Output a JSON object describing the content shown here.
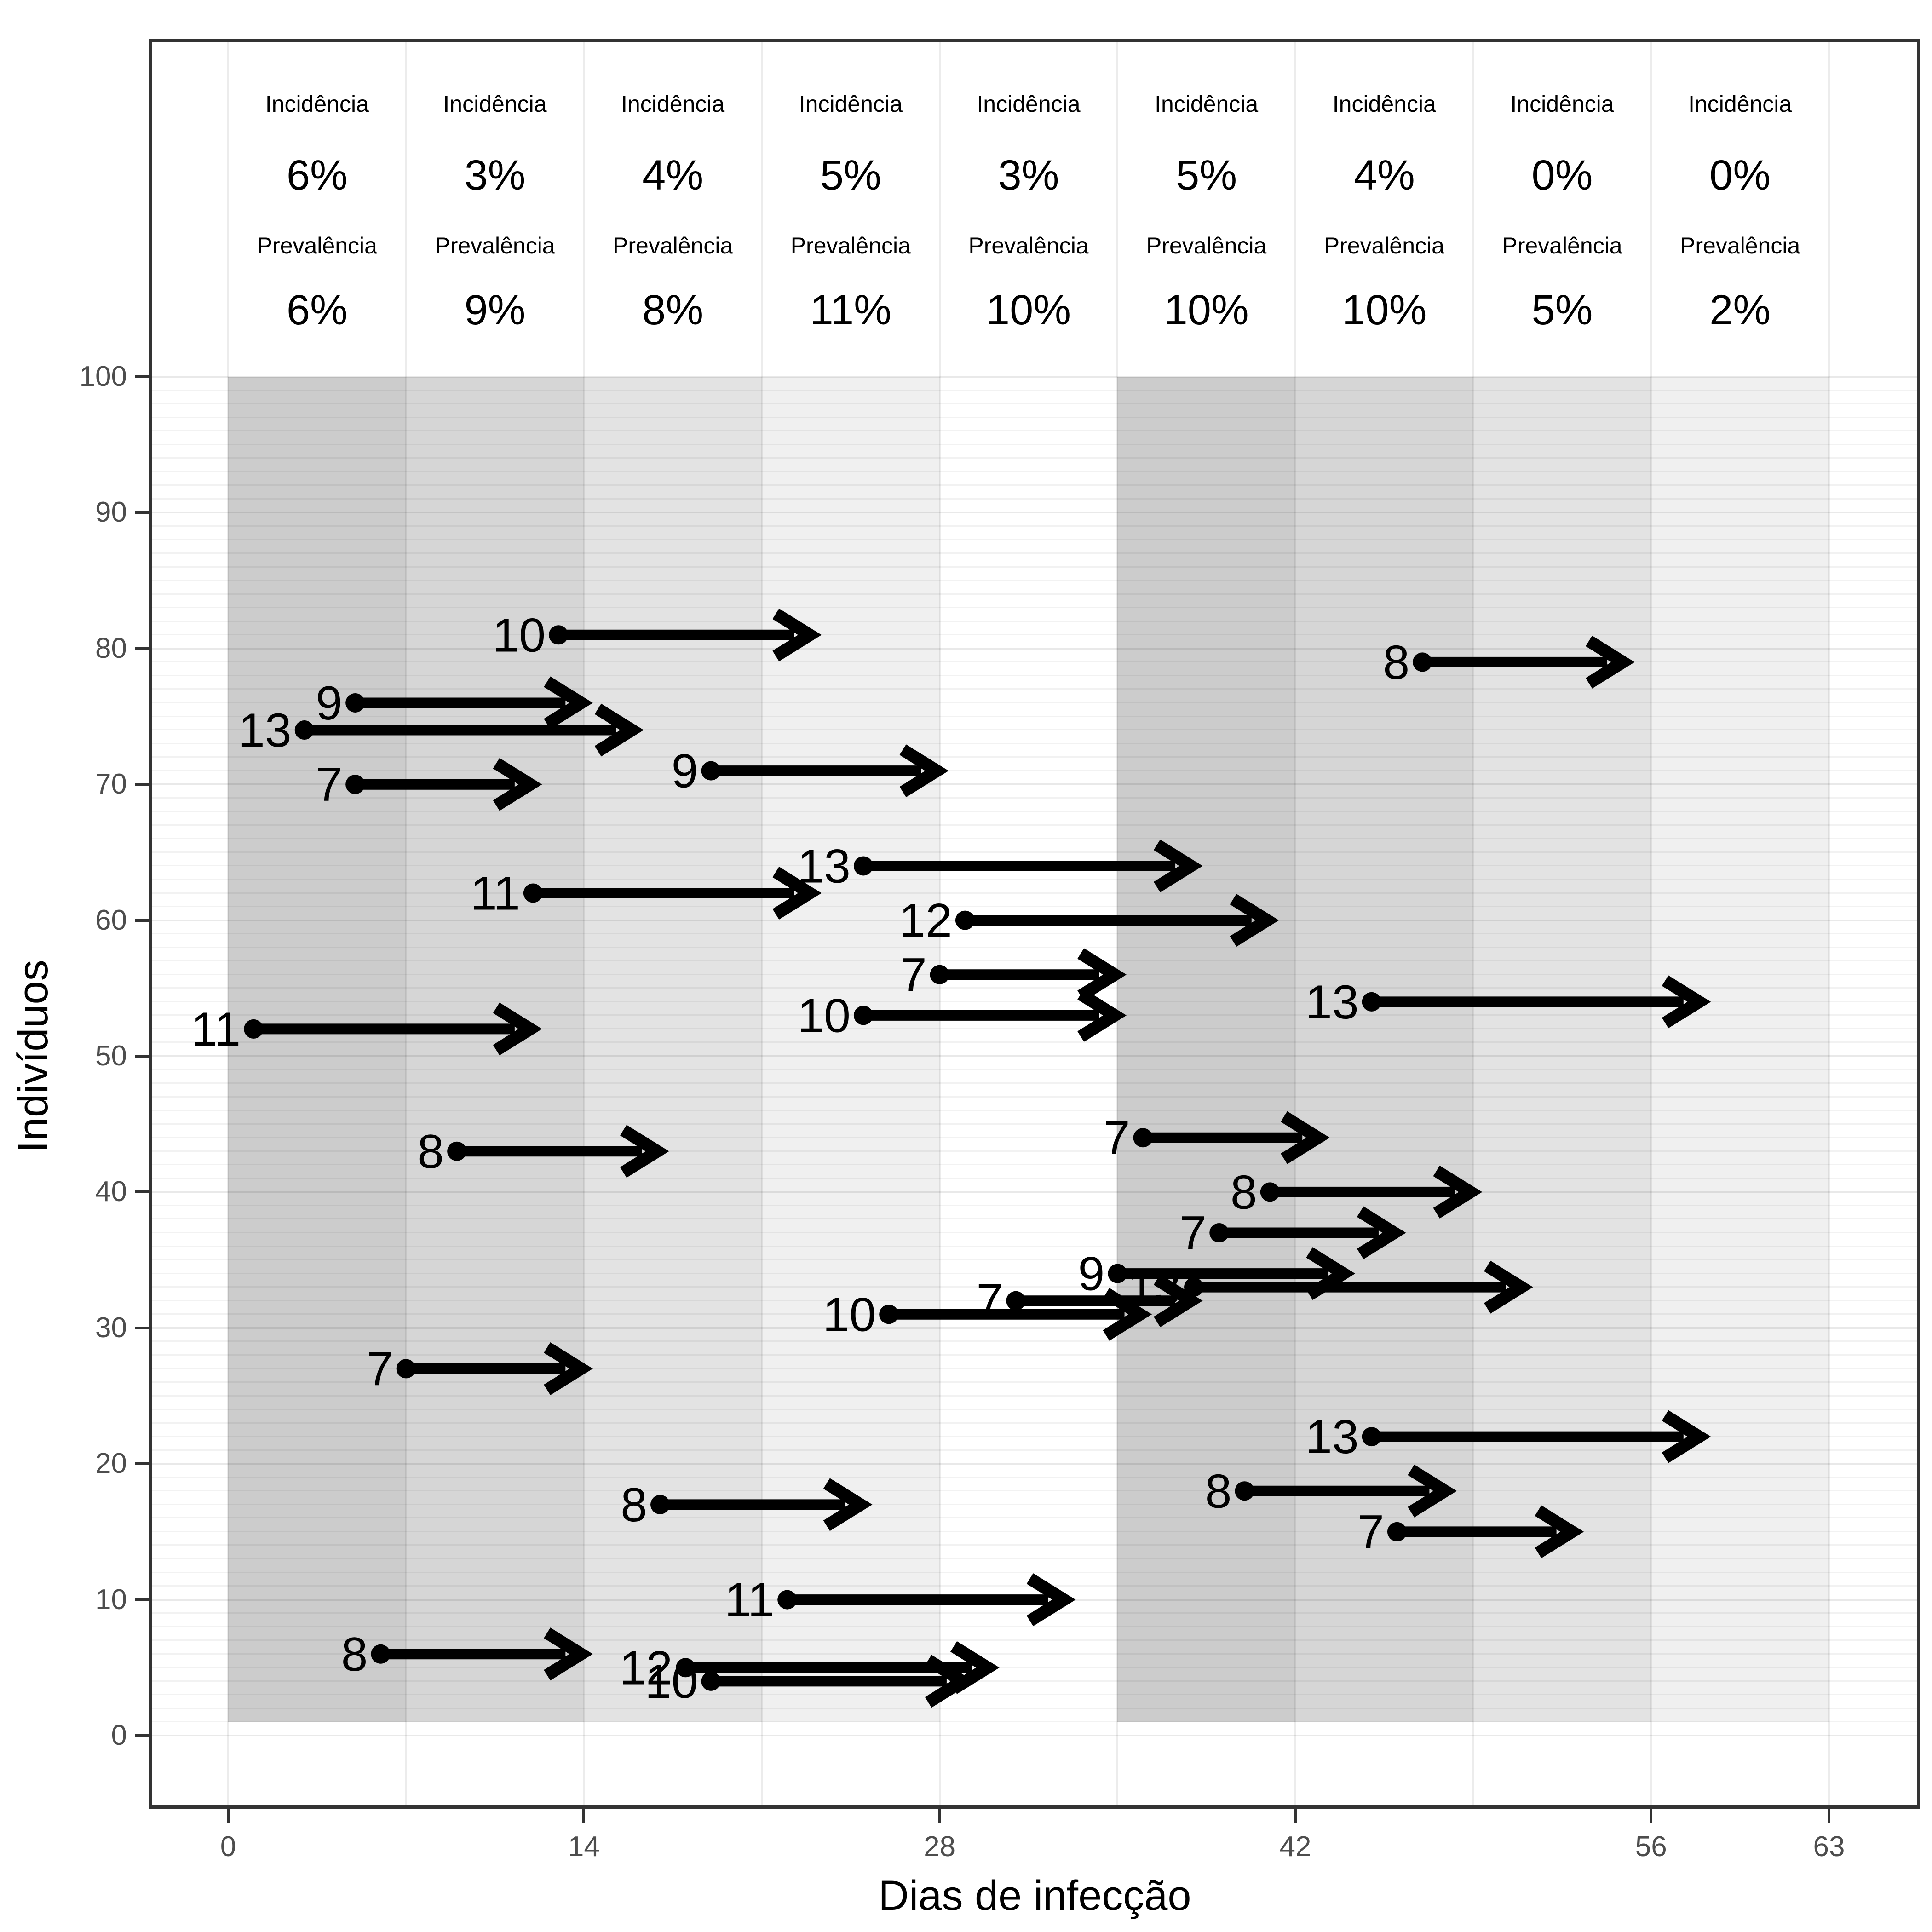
{
  "figure": {
    "x_axis": {
      "title": "Dias de infecção",
      "tick_values": [
        0,
        14,
        28,
        42,
        56,
        63
      ],
      "range": [
        0,
        63
      ]
    },
    "y_axis": {
      "title": "Indivíduos",
      "tick_values": [
        0,
        10,
        20,
        30,
        40,
        50,
        60,
        70,
        80,
        90,
        100
      ],
      "range": [
        0,
        100
      ]
    }
  },
  "chart_data": {
    "type": "arrow-timeline",
    "title": "",
    "xlabel": "Dias de infecção",
    "ylabel": "Indivíduos",
    "xlim": [
      0,
      63
    ],
    "ylim": [
      0,
      100
    ],
    "grid": "weekly vertical lines, per-individual horizontal lines",
    "incidence_word": "Incidência",
    "prevalence_word": "Prevalência",
    "weekly_stats": [
      {
        "week": 1,
        "from_day": 0,
        "to_day": 7,
        "incidence": "6%",
        "prevalence": "6%",
        "band_color": "#cccccc"
      },
      {
        "week": 2,
        "from_day": 7,
        "to_day": 14,
        "incidence": "3%",
        "prevalence": "9%",
        "band_color": "#d6d6d6"
      },
      {
        "week": 3,
        "from_day": 14,
        "to_day": 21,
        "incidence": "4%",
        "prevalence": "8%",
        "band_color": "#e3e3e3"
      },
      {
        "week": 4,
        "from_day": 21,
        "to_day": 28,
        "incidence": "5%",
        "prevalence": "11%",
        "band_color": "#f0f0f0"
      },
      {
        "week": 5,
        "from_day": 28,
        "to_day": 35,
        "incidence": "3%",
        "prevalence": "10%",
        "band_color": null
      },
      {
        "week": 6,
        "from_day": 35,
        "to_day": 42,
        "incidence": "5%",
        "prevalence": "10%",
        "band_color": "#cccccc"
      },
      {
        "week": 7,
        "from_day": 42,
        "to_day": 49,
        "incidence": "4%",
        "prevalence": "10%",
        "band_color": "#d6d6d6"
      },
      {
        "week": 8,
        "from_day": 49,
        "to_day": 56,
        "incidence": "0%",
        "prevalence": "5%",
        "band_color": "#e3e3e3"
      },
      {
        "week": 9,
        "from_day": 56,
        "to_day": 63,
        "incidence": "0%",
        "prevalence": "2%",
        "band_color": "#f0f0f0"
      }
    ],
    "arrows": [
      {
        "individual": 81,
        "start_day": 13,
        "duration_days": 10,
        "label": "10"
      },
      {
        "individual": 79,
        "start_day": 47,
        "duration_days": 8,
        "label": "8"
      },
      {
        "individual": 76,
        "start_day": 5,
        "duration_days": 9,
        "label": "9"
      },
      {
        "individual": 74,
        "start_day": 3,
        "duration_days": 13,
        "label": "13"
      },
      {
        "individual": 71,
        "start_day": 19,
        "duration_days": 9,
        "label": "9"
      },
      {
        "individual": 70,
        "start_day": 5,
        "duration_days": 7,
        "label": "7"
      },
      {
        "individual": 64,
        "start_day": 25,
        "duration_days": 13,
        "label": "13"
      },
      {
        "individual": 62,
        "start_day": 12,
        "duration_days": 11,
        "label": "11"
      },
      {
        "individual": 60,
        "start_day": 29,
        "duration_days": 12,
        "label": "12"
      },
      {
        "individual": 56,
        "start_day": 28,
        "duration_days": 7,
        "label": "7"
      },
      {
        "individual": 54,
        "start_day": 45,
        "duration_days": 13,
        "label": "13"
      },
      {
        "individual": 53,
        "start_day": 25,
        "duration_days": 10,
        "label": "10"
      },
      {
        "individual": 52,
        "start_day": 1,
        "duration_days": 11,
        "label": "11"
      },
      {
        "individual": 44,
        "start_day": 36,
        "duration_days": 7,
        "label": "7"
      },
      {
        "individual": 43,
        "start_day": 9,
        "duration_days": 8,
        "label": "8"
      },
      {
        "individual": 40,
        "start_day": 41,
        "duration_days": 8,
        "label": "8"
      },
      {
        "individual": 37,
        "start_day": 39,
        "duration_days": 7,
        "label": "7"
      },
      {
        "individual": 34,
        "start_day": 35,
        "duration_days": 9,
        "label": "9"
      },
      {
        "individual": 33,
        "start_day": 38,
        "duration_days": 13,
        "label": "13"
      },
      {
        "individual": 32,
        "start_day": 31,
        "duration_days": 7,
        "label": "7"
      },
      {
        "individual": 31,
        "start_day": 26,
        "duration_days": 10,
        "label": "10"
      },
      {
        "individual": 27,
        "start_day": 7,
        "duration_days": 7,
        "label": "7"
      },
      {
        "individual": 22,
        "start_day": 45,
        "duration_days": 13,
        "label": "13"
      },
      {
        "individual": 18,
        "start_day": 40,
        "duration_days": 8,
        "label": "8"
      },
      {
        "individual": 17,
        "start_day": 17,
        "duration_days": 8,
        "label": "8"
      },
      {
        "individual": 15,
        "start_day": 46,
        "duration_days": 7,
        "label": "7"
      },
      {
        "individual": 10,
        "start_day": 22,
        "duration_days": 11,
        "label": "11"
      },
      {
        "individual": 6,
        "start_day": 6,
        "duration_days": 8,
        "label": "8"
      },
      {
        "individual": 5,
        "start_day": 18,
        "duration_days": 12,
        "label": "12"
      },
      {
        "individual": 4,
        "start_day": 19,
        "duration_days": 10,
        "label": "10"
      }
    ]
  }
}
